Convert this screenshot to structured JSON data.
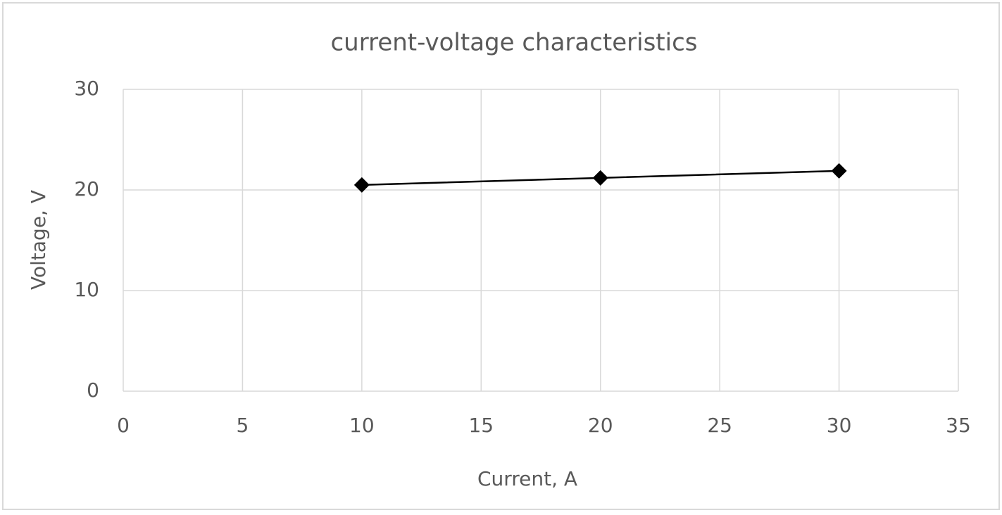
{
  "chart_data": {
    "type": "line",
    "title": "current-voltage characteristics",
    "x_label": "Current, A",
    "y_label": "Voltage, V",
    "x": [
      10,
      20,
      30
    ],
    "values": [
      20.5,
      21.2,
      21.9
    ],
    "color": "#000000",
    "marker": "diamond",
    "xlim": [
      0,
      35
    ],
    "xticks": [
      0,
      5,
      10,
      15,
      20,
      25,
      30,
      35
    ],
    "ylim": [
      0,
      30
    ],
    "yticks": [
      0,
      10,
      20,
      30
    ],
    "grid": true
  }
}
